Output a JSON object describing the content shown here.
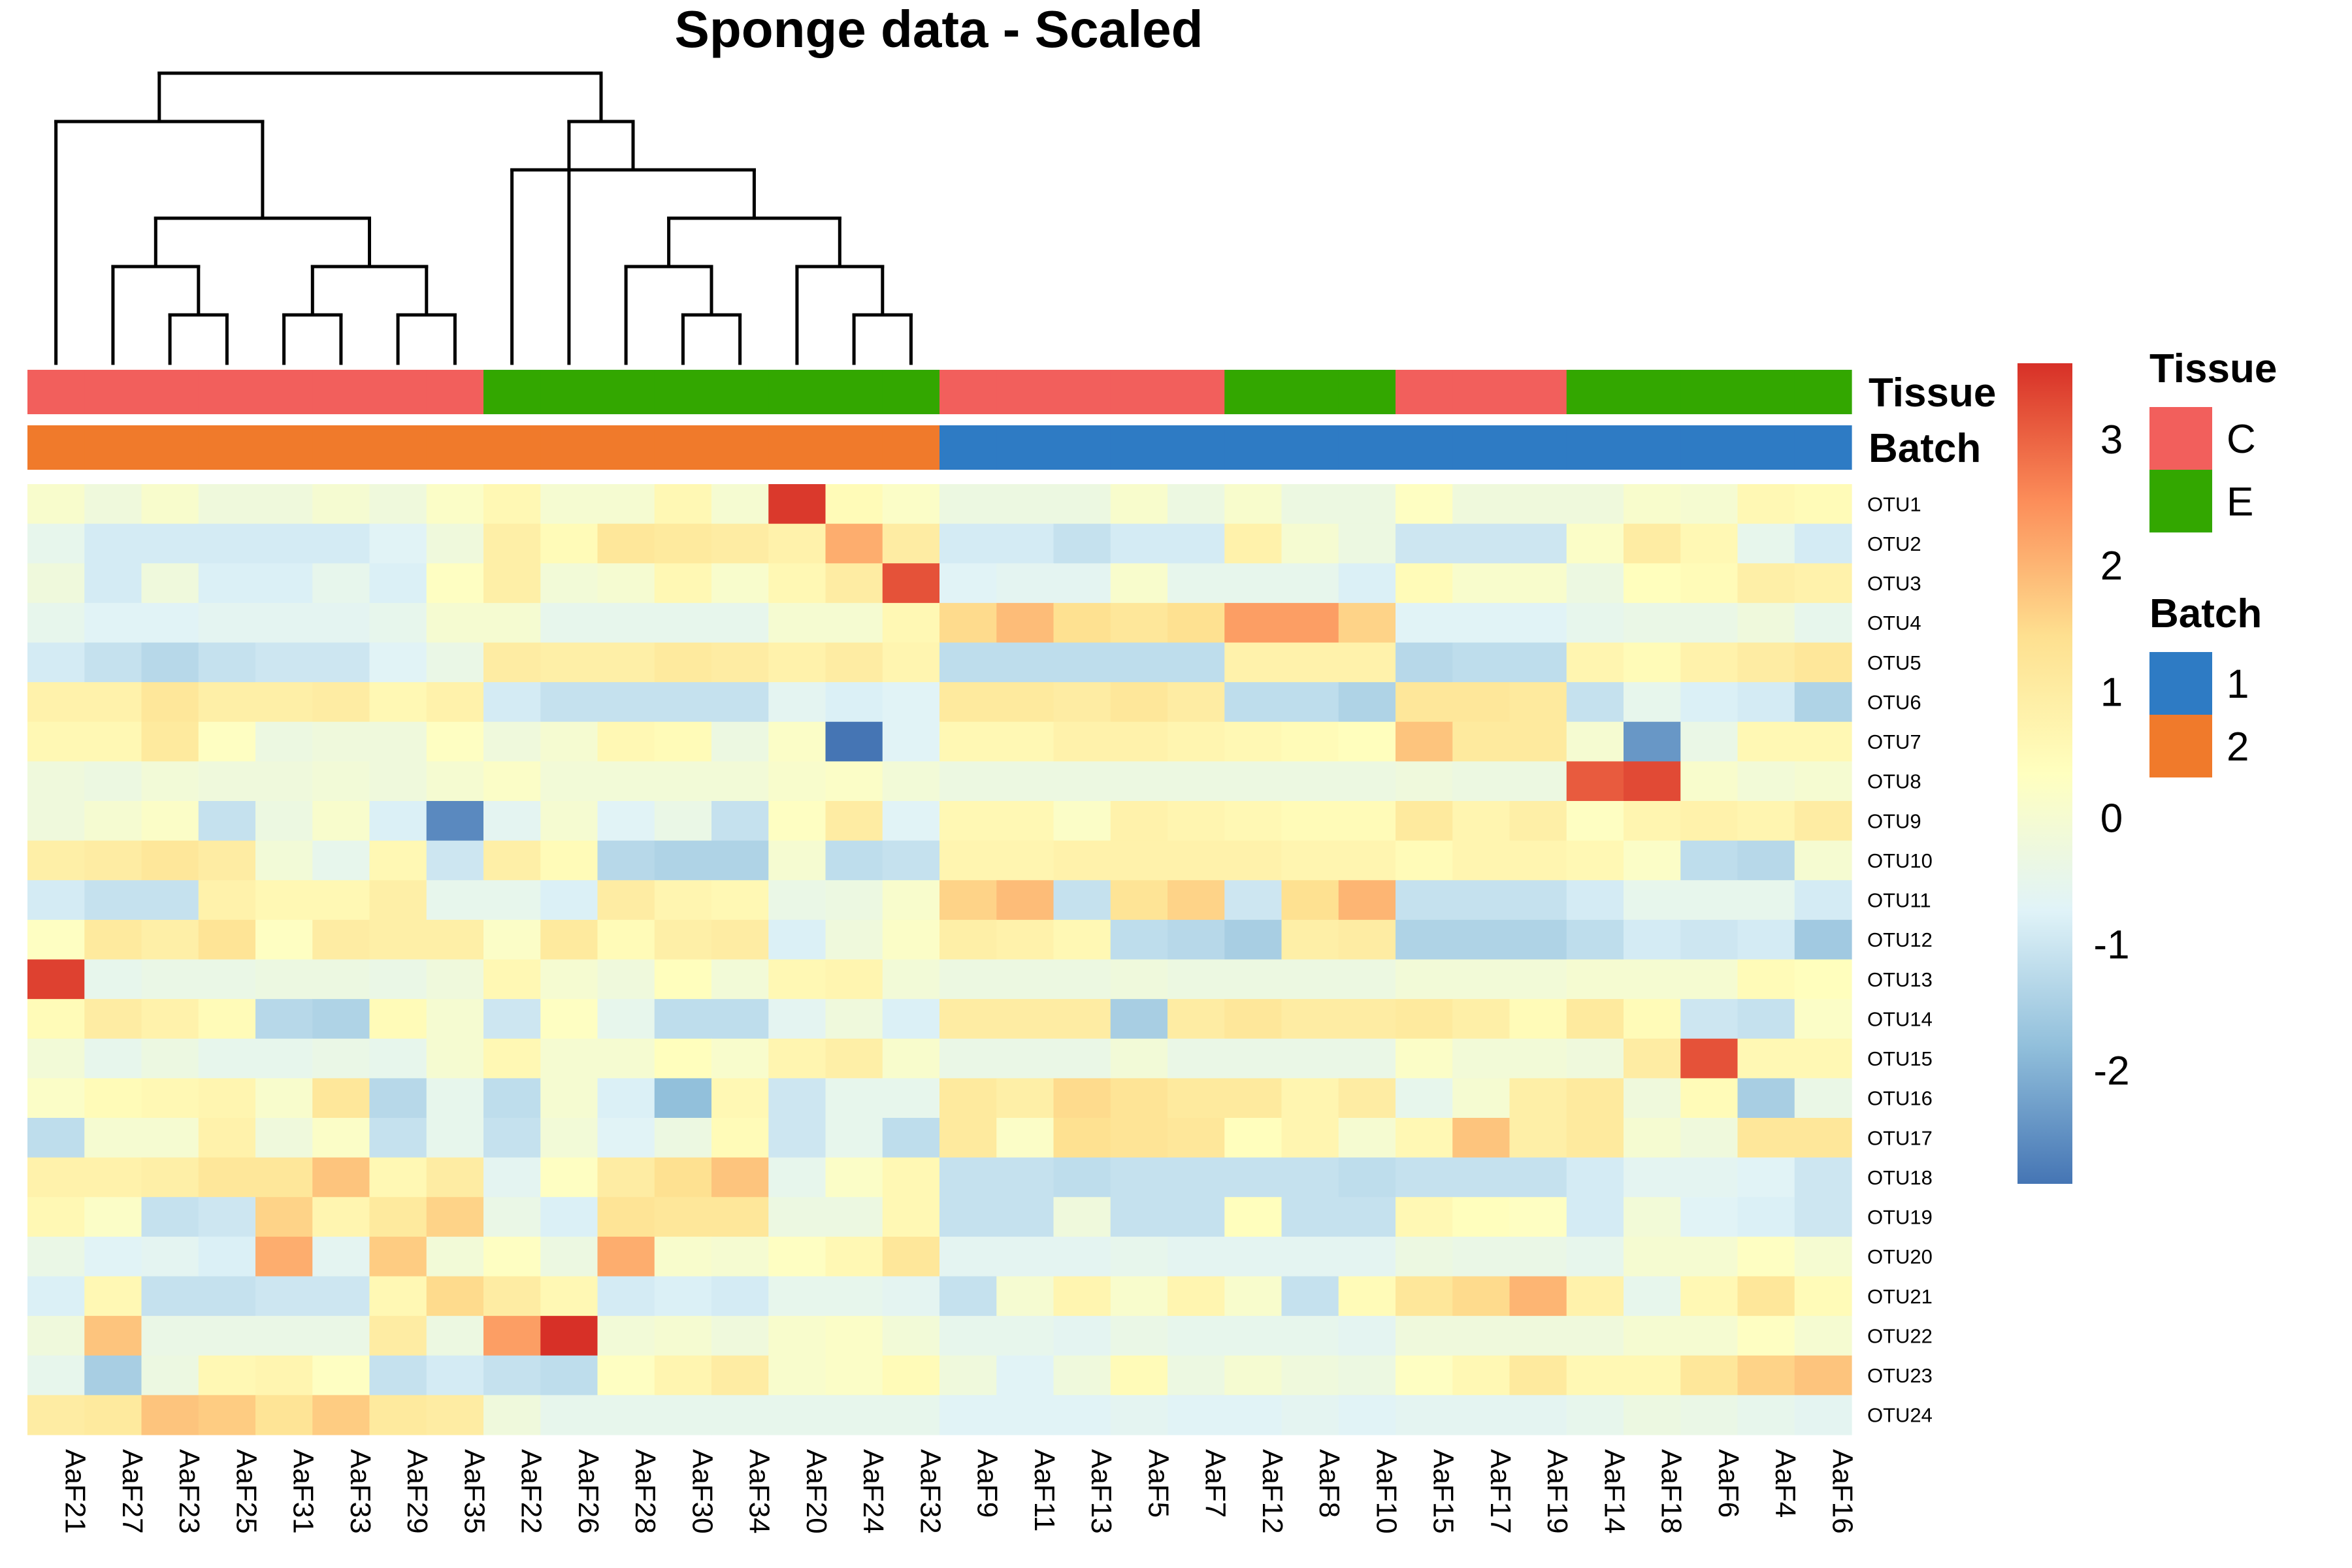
{
  "chart_data": {
    "type": "heatmap",
    "title": "Sponge data - Scaled",
    "columns": [
      "AaF21",
      "AaF27",
      "AaF23",
      "AaF25",
      "AaF31",
      "AaF33",
      "AaF29",
      "AaF35",
      "AaF22",
      "AaF26",
      "AaF28",
      "AaF30",
      "AaF34",
      "AaF20",
      "AaF24",
      "AaF32",
      "AaF9",
      "AaF11",
      "AaF13",
      "AaF5",
      "AaF7",
      "AaF12",
      "AaF8",
      "AaF10",
      "AaF15",
      "AaF17",
      "AaF19",
      "AaF14",
      "AaF18",
      "AaF6",
      "AaF4",
      "AaF16"
    ],
    "rows": [
      "OTU1",
      "OTU2",
      "OTU3",
      "OTU4",
      "OTU5",
      "OTU6",
      "OTU7",
      "OTU8",
      "OTU9",
      "OTU10",
      "OTU11",
      "OTU12",
      "OTU13",
      "OTU14",
      "OTU15",
      "OTU16",
      "OTU17",
      "OTU18",
      "OTU19",
      "OTU20",
      "OTU21",
      "OTU22",
      "OTU23",
      "OTU24"
    ],
    "values": [
      [
        0.1,
        -0.2,
        0.1,
        -0.2,
        -0.2,
        0,
        -0.2,
        0.2,
        0.6,
        0,
        0,
        0.6,
        0,
        3.5,
        0.5,
        0.2,
        -0.3,
        -0.3,
        -0.3,
        0.1,
        -0.3,
        0.1,
        -0.3,
        -0.3,
        0.3,
        -0.2,
        -0.2,
        -0.2,
        0.1,
        0,
        0.6,
        0.5
      ],
      [
        -0.5,
        -0.9,
        -0.9,
        -0.9,
        -0.9,
        -0.9,
        -0.7,
        -0.2,
        0.9,
        0.5,
        1.2,
        1.1,
        1,
        0.8,
        2.1,
        1,
        -0.9,
        -0.9,
        -1.1,
        -0.9,
        -0.9,
        0.8,
        0,
        -0.3,
        -1,
        -1,
        -1,
        0.2,
        1,
        0.6,
        -0.5,
        -0.9
      ],
      [
        -0.2,
        -0.9,
        -0.2,
        -0.8,
        -0.8,
        -0.5,
        -0.8,
        0.3,
        0.9,
        -0.1,
        0,
        0.6,
        0.1,
        0.6,
        1,
        3.2,
        -0.7,
        -0.6,
        -0.6,
        0.1,
        -0.5,
        -0.5,
        -0.5,
        -0.8,
        0.5,
        0.1,
        0.1,
        -0.3,
        0.4,
        0.5,
        0.9,
        0.8
      ],
      [
        -0.5,
        -0.7,
        -0.7,
        -0.6,
        -0.6,
        -0.6,
        -0.5,
        0,
        0,
        -0.5,
        -0.5,
        -0.5,
        -0.5,
        0,
        0,
        0.6,
        1.5,
        1.9,
        1.4,
        1.2,
        1.4,
        2.3,
        2.3,
        1.6,
        -0.7,
        -0.7,
        -0.7,
        -0.5,
        -0.4,
        -0.4,
        -0.2,
        -0.5
      ],
      [
        -0.9,
        -1.1,
        -1.3,
        -1.1,
        -1,
        -1,
        -0.7,
        -0.4,
        1,
        0.9,
        0.9,
        1.1,
        1,
        0.8,
        1,
        0.7,
        -1.2,
        -1.2,
        -1.2,
        -1.2,
        -1.2,
        0.8,
        0.8,
        0.8,
        -1.3,
        -1.2,
        -1.2,
        0.7,
        0.5,
        0.8,
        1,
        1.2
      ],
      [
        0.8,
        0.8,
        1.2,
        0.9,
        0.9,
        1,
        0.6,
        0.8,
        -0.9,
        -1.1,
        -1.1,
        -1.1,
        -1.1,
        -0.6,
        -0.8,
        -0.7,
        1.1,
        1.1,
        1,
        1.2,
        1,
        -1.2,
        -1.2,
        -1.4,
        1.2,
        1.2,
        1.1,
        -1.1,
        -0.5,
        -0.8,
        -0.9,
        -1.4
      ],
      [
        0.6,
        0.6,
        1.1,
        0.3,
        -0.3,
        -0.2,
        -0.2,
        0.3,
        -0.2,
        0,
        0.6,
        0.5,
        -0.3,
        0.2,
        -2.9,
        -0.7,
        0.6,
        0.6,
        0.8,
        0.8,
        0.7,
        0.6,
        0.5,
        0.4,
        1.8,
        1.1,
        1.1,
        0,
        -2.4,
        -0.4,
        0.6,
        0.6
      ],
      [
        -0.2,
        -0.3,
        -0.1,
        -0.2,
        -0.2,
        -0.1,
        -0.2,
        0,
        0.2,
        -0.1,
        -0.1,
        -0.1,
        -0.1,
        0.1,
        0.2,
        -0.1,
        -0.3,
        -0.3,
        -0.3,
        -0.3,
        -0.3,
        -0.3,
        -0.3,
        -0.3,
        -0.2,
        -0.3,
        -0.3,
        3.1,
        3.3,
        0.1,
        -0.1,
        0
      ],
      [
        -0.2,
        0,
        0.2,
        -1.1,
        -0.3,
        0.1,
        -0.8,
        -2.6,
        -0.6,
        0,
        -0.7,
        -0.4,
        -1.1,
        0.3,
        1,
        -0.7,
        0.6,
        0.6,
        0.2,
        0.8,
        0.7,
        0.6,
        0.5,
        0.5,
        1.1,
        0.7,
        0.9,
        0.3,
        0.7,
        0.8,
        0.7,
        1
      ],
      [
        0.9,
        1,
        1.2,
        1,
        -0.1,
        -0.5,
        0.6,
        -1,
        0.9,
        0.5,
        -1.3,
        -1.4,
        -1.4,
        0,
        -1.2,
        -1.1,
        0.7,
        0.7,
        0.8,
        0.8,
        0.8,
        0.8,
        0.7,
        0.7,
        0.5,
        0.7,
        0.7,
        0.6,
        0.2,
        -1.2,
        -1.3,
        0
      ],
      [
        -0.9,
        -1.1,
        -1.1,
        0.8,
        0.6,
        0.6,
        0.9,
        -0.5,
        -0.5,
        -0.8,
        1,
        0.7,
        0.6,
        -0.4,
        -0.3,
        0.1,
        1.6,
        1.9,
        -1.1,
        1.3,
        1.6,
        -1,
        1.4,
        2,
        -1.1,
        -1.1,
        -1.1,
        -0.9,
        -0.5,
        -0.5,
        -0.5,
        -0.9
      ],
      [
        0.3,
        1.1,
        0.9,
        1.3,
        0.3,
        1,
        0.9,
        0.9,
        0.2,
        1.1,
        0.5,
        0.9,
        1,
        -0.8,
        -0.2,
        0.2,
        0.9,
        0.8,
        0.6,
        -1.2,
        -1.3,
        -1.5,
        0.9,
        1,
        -1.4,
        -1.4,
        -1.4,
        -1.2,
        -0.9,
        -1,
        -0.9,
        -1.6
      ],
      [
        3.4,
        -0.5,
        -0.4,
        -0.4,
        -0.3,
        -0.3,
        -0.4,
        -0.2,
        0.6,
        0,
        -0.2,
        0.4,
        -0.1,
        0.6,
        0.7,
        -0.1,
        -0.3,
        -0.3,
        -0.3,
        -0.2,
        -0.3,
        -0.3,
        -0.3,
        -0.3,
        -0.1,
        -0.1,
        -0.1,
        0,
        0,
        0,
        0.5,
        0.4
      ],
      [
        0.5,
        1,
        0.8,
        0.5,
        -1.3,
        -1.4,
        0.5,
        0,
        -1,
        0.3,
        -0.5,
        -1.2,
        -1.2,
        -0.6,
        -0.2,
        -0.8,
        1,
        1,
        1,
        -1.5,
        1,
        1.2,
        1,
        1,
        1.1,
        0.9,
        0.5,
        1.1,
        0.5,
        -1,
        -1.1,
        0.2
      ],
      [
        -0.1,
        -0.5,
        -0.3,
        -0.5,
        -0.5,
        -0.4,
        -0.5,
        0,
        0.6,
        0,
        0,
        0.4,
        0.1,
        0.7,
        0.9,
        0.1,
        -0.4,
        -0.4,
        -0.4,
        -0.1,
        -0.4,
        -0.4,
        -0.4,
        -0.4,
        0.2,
        -0.1,
        -0.1,
        -0.2,
        1,
        3.2,
        0.6,
        0.6
      ],
      [
        0.2,
        0.5,
        0.6,
        0.7,
        0.1,
        1.2,
        -1.3,
        -0.5,
        -1.2,
        0,
        -0.8,
        -1.8,
        0.6,
        -1,
        -0.5,
        -0.5,
        1.1,
        0.9,
        1.5,
        1.3,
        1.1,
        1.1,
        0.7,
        1,
        -0.5,
        0,
        0.9,
        1.1,
        -0.2,
        0.5,
        -1.5,
        -0.4
      ],
      [
        -1.2,
        0,
        0,
        0.8,
        -0.2,
        0.2,
        -1.1,
        -0.5,
        -1.1,
        -0.1,
        -0.7,
        -0.3,
        0.5,
        -1,
        -0.5,
        -1.2,
        1.1,
        0.2,
        1.4,
        1.3,
        1.2,
        0.4,
        0.7,
        0,
        0.6,
        1.8,
        0.9,
        1.1,
        0,
        -0.2,
        1.2,
        1.2
      ],
      [
        0.8,
        0.8,
        0.9,
        1.2,
        1.2,
        1.8,
        0.6,
        1,
        -0.6,
        0.3,
        1,
        1.4,
        1.8,
        -0.5,
        0.2,
        0.6,
        -1.1,
        -1.1,
        -1.2,
        -1.1,
        -1.1,
        -1.1,
        -1.1,
        -1.2,
        -1.1,
        -1.1,
        -1.1,
        -0.9,
        -0.6,
        -0.6,
        -0.7,
        -1
      ],
      [
        0.6,
        0.2,
        -1.1,
        -1,
        1.6,
        0.7,
        1.1,
        1.6,
        -0.4,
        -0.8,
        1.3,
        1.2,
        1.2,
        -0.3,
        -0.3,
        0.6,
        -1.1,
        -1.1,
        -0.2,
        -1.1,
        -1.1,
        0.4,
        -1.1,
        -1.1,
        0.6,
        0.4,
        0.3,
        -0.9,
        -0.1,
        -0.7,
        -0.8,
        -1
      ],
      [
        -0.4,
        -0.7,
        -0.6,
        -0.8,
        2.1,
        -0.6,
        1.7,
        -0.1,
        0.3,
        -0.3,
        2.1,
        0.1,
        0,
        0.3,
        0.6,
        1.2,
        -0.6,
        -0.6,
        -0.6,
        -0.5,
        -0.6,
        -0.6,
        -0.6,
        -0.6,
        -0.3,
        -0.4,
        -0.4,
        -0.5,
        0,
        0,
        0.3,
        0
      ],
      [
        -0.8,
        0.6,
        -1.1,
        -1.1,
        -1,
        -1,
        0.6,
        1.5,
        1,
        0.6,
        -0.9,
        -0.8,
        -0.9,
        -0.5,
        -0.5,
        -0.6,
        -1.1,
        0,
        0.7,
        0.1,
        0.7,
        0.1,
        -1.1,
        0.5,
        1.2,
        1.5,
        2,
        0.8,
        -0.5,
        0.6,
        1.2,
        0.5
      ],
      [
        -0.2,
        1.8,
        -0.4,
        -0.4,
        -0.4,
        -0.4,
        1,
        -0.3,
        2.3,
        3.6,
        -0.1,
        0,
        -0.2,
        0.1,
        0.2,
        -0.1,
        -0.5,
        -0.5,
        -0.6,
        -0.4,
        -0.5,
        -0.5,
        -0.5,
        -0.6,
        -0.2,
        -0.2,
        -0.2,
        -0.2,
        0,
        0,
        0.3,
        0
      ],
      [
        -0.5,
        -1.5,
        -0.3,
        0.6,
        0.7,
        0.3,
        -1.1,
        -0.9,
        -1.1,
        -1.2,
        0.3,
        0.7,
        1,
        0.1,
        0.2,
        0.5,
        -0.2,
        -0.7,
        -0.2,
        0.5,
        -0.3,
        0,
        -0.2,
        -0.3,
        0.3,
        0.6,
        1.1,
        0.6,
        0.6,
        1.2,
        1.6,
        1.8
      ],
      [
        1,
        1.1,
        1.8,
        1.7,
        1.3,
        1.7,
        1.1,
        1,
        -0.2,
        -0.5,
        -0.5,
        -0.5,
        -0.5,
        -0.5,
        -0.5,
        -0.5,
        -0.7,
        -0.7,
        -0.7,
        -0.6,
        -0.7,
        -0.7,
        -0.6,
        -0.7,
        -0.6,
        -0.6,
        -0.6,
        -0.5,
        -0.3,
        -0.4,
        -0.5,
        -0.6
      ]
    ],
    "annotations": [
      {
        "name": "Tissue",
        "values": [
          "C",
          "C",
          "C",
          "C",
          "C",
          "C",
          "C",
          "C",
          "E",
          "E",
          "E",
          "E",
          "E",
          "E",
          "E",
          "E",
          "C",
          "C",
          "C",
          "C",
          "C",
          "E",
          "E",
          "E",
          "C",
          "C",
          "C",
          "E",
          "E",
          "E",
          "E",
          "E"
        ]
      },
      {
        "name": "Batch",
        "values": [
          "2",
          "2",
          "2",
          "2",
          "2",
          "2",
          "2",
          "2",
          "2",
          "2",
          "2",
          "2",
          "2",
          "2",
          "2",
          "2",
          "1",
          "1",
          "1",
          "1",
          "1",
          "1",
          "1",
          "1",
          "1",
          "1",
          "1",
          "1",
          "1",
          "1",
          "1",
          "1"
        ]
      }
    ],
    "legend": {
      "colorbar_ticks": [
        3,
        2,
        1,
        0,
        -1,
        -2
      ],
      "colorbar_range": [
        -2.9,
        3.6
      ],
      "palette": [
        "#4575B4",
        "#91BFDB",
        "#E0F3F8",
        "#FFFFBF",
        "#FEE090",
        "#FC8D59",
        "#D73027"
      ],
      "groups": [
        {
          "title": "Tissue",
          "items": [
            {
              "label": "C",
              "color": "#F25F5C"
            },
            {
              "label": "E",
              "color": "#33A700"
            }
          ]
        },
        {
          "title": "Batch",
          "items": [
            {
              "label": "1",
              "color": "#2E7BC4"
            },
            {
              "label": "2",
              "color": "#F07A2B"
            }
          ]
        }
      ]
    },
    "dendrogram": [
      [
        0,
        [
          [
            [
              1,
              [
                2,
                3
              ]
            ],
            [
              [
                4,
                5
              ],
              [
                6,
                7
              ]
            ]
          ]
        ]
      ],
      [
        [
          8,
          [
            [
              10,
              [
                11,
                12
              ]
            ],
            [
              13,
              [
                14,
                15
              ]
            ]
          ]
        ],
        [
          9
        ]
      ]
    ]
  }
}
